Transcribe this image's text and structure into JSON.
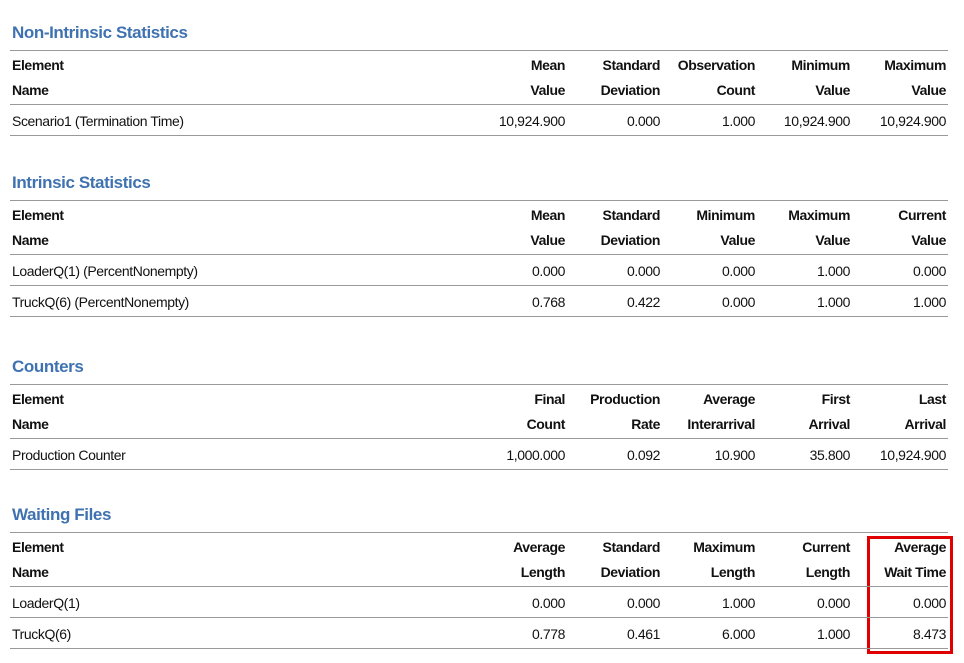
{
  "sections": [
    {
      "title": "Non-Intrinsic Statistics",
      "columns": [
        [
          "Element",
          "Name"
        ],
        [
          "Mean",
          "Value"
        ],
        [
          "Standard",
          "Deviation"
        ],
        [
          "Observation",
          "Count"
        ],
        [
          "Minimum",
          "Value"
        ],
        [
          "Maximum",
          "Value"
        ]
      ],
      "rows": [
        [
          "Scenario1 (Termination Time)",
          "10,924.900",
          "0.000",
          "1.000",
          "10,924.900",
          "10,924.900"
        ]
      ]
    },
    {
      "title": "Intrinsic Statistics",
      "columns": [
        [
          "Element",
          "Name"
        ],
        [
          "Mean",
          "Value"
        ],
        [
          "Standard",
          "Deviation"
        ],
        [
          "Minimum",
          "Value"
        ],
        [
          "Maximum",
          "Value"
        ],
        [
          "Current",
          "Value"
        ]
      ],
      "rows": [
        [
          "LoaderQ(1) (PercentNonempty)",
          "0.000",
          "0.000",
          "0.000",
          "1.000",
          "0.000"
        ],
        [
          "TruckQ(6) (PercentNonempty)",
          "0.768",
          "0.422",
          "0.000",
          "1.000",
          "1.000"
        ]
      ]
    },
    {
      "title": "Counters",
      "columns": [
        [
          "Element",
          "Name"
        ],
        [
          "Final",
          "Count"
        ],
        [
          "Production",
          "Rate"
        ],
        [
          "Average",
          "Interarrival"
        ],
        [
          "First",
          "Arrival"
        ],
        [
          "Last",
          "Arrival"
        ]
      ],
      "rows": [
        [
          "Production Counter",
          "1,000.000",
          "0.092",
          "10.900",
          "35.800",
          "10,924.900"
        ]
      ]
    },
    {
      "title": "Waiting Files",
      "columns": [
        [
          "Element",
          "Name"
        ],
        [
          "Average",
          "Length"
        ],
        [
          "Standard",
          "Deviation"
        ],
        [
          "Maximum",
          "Length"
        ],
        [
          "Current",
          "Length"
        ],
        [
          "Average",
          "Wait Time"
        ]
      ],
      "rows": [
        [
          "LoaderQ(1)",
          "0.000",
          "0.000",
          "1.000",
          "0.000",
          "0.000"
        ],
        [
          "TruckQ(6)",
          "0.778",
          "0.461",
          "6.000",
          "1.000",
          "8.473"
        ]
      ]
    }
  ]
}
